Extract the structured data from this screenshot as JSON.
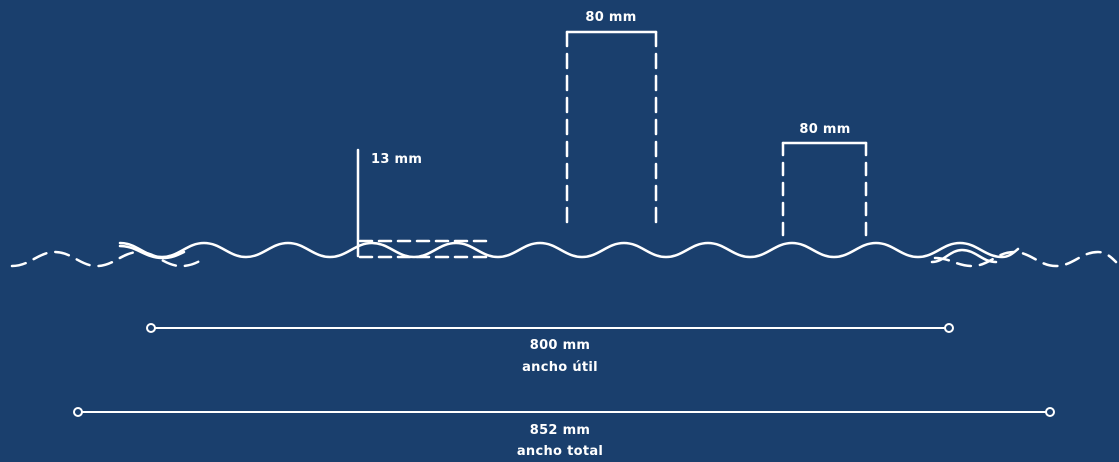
{
  "colors": {
    "background": "#1a3f6d",
    "line": "#ffffff"
  },
  "labels": {
    "tall_width": "80 mm",
    "short_width": "80 mm",
    "height": "13 mm",
    "useful_width_value": "800 mm",
    "useful_width_caption": "ancho útil",
    "total_width_value": "852 mm",
    "total_width_caption": "ancho total"
  }
}
